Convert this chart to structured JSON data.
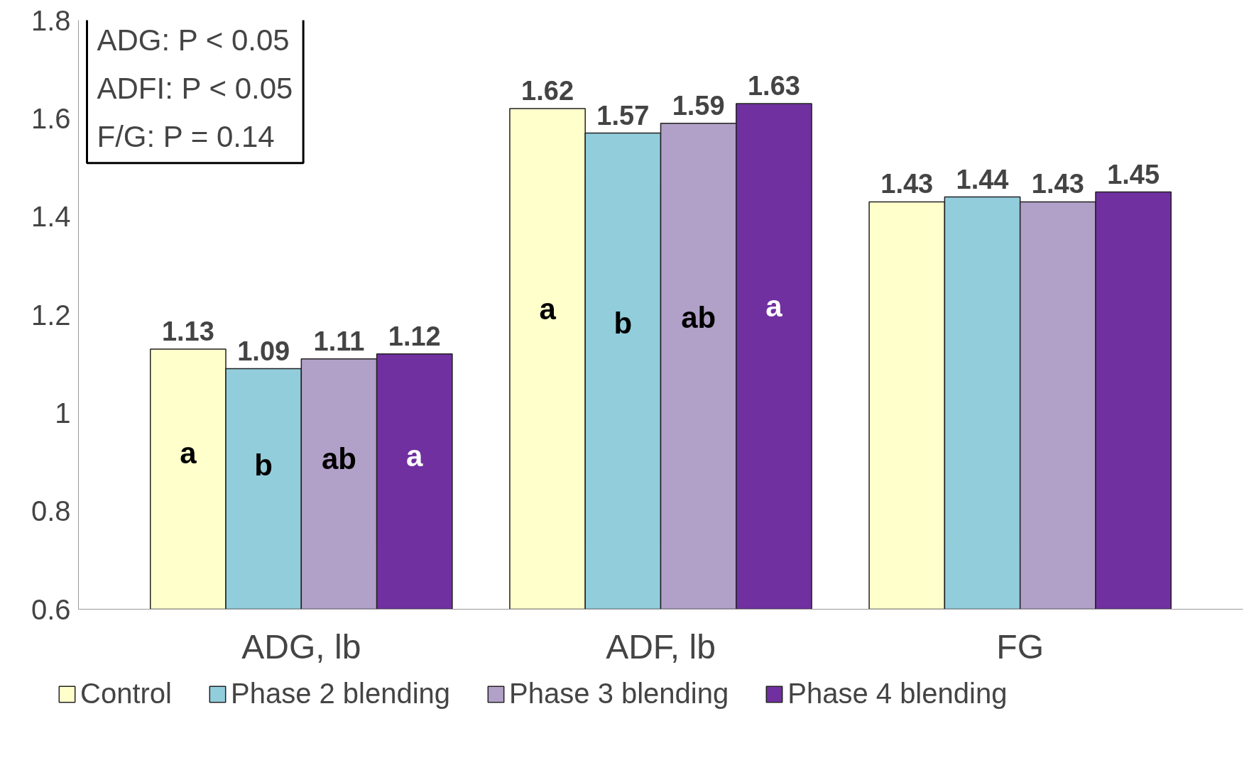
{
  "chart_data": {
    "type": "bar",
    "categories": [
      "ADG, lb",
      "ADF, lb",
      "FG"
    ],
    "series": [
      {
        "name": "Control",
        "color": "#ffffcc",
        "values": [
          1.13,
          1.62,
          1.43
        ]
      },
      {
        "name": "Phase 2 blending",
        "color": "#92cddc",
        "values": [
          1.09,
          1.57,
          1.44
        ]
      },
      {
        "name": "Phase 3 blending",
        "color": "#b1a0c7",
        "values": [
          1.11,
          1.59,
          1.43
        ]
      },
      {
        "name": "Phase 4 blending",
        "color": "#7030a0",
        "values": [
          1.12,
          1.63,
          1.45
        ]
      }
    ],
    "ylim": [
      0.6,
      1.8
    ],
    "yticks": [
      0.6,
      0.8,
      1,
      1.2,
      1.4,
      1.6,
      1.8
    ],
    "data_labels": true,
    "grid": false,
    "legend": "bottom",
    "annotations": [
      "ADG: P < 0.05",
      "ADFI: P < 0.05",
      "F/G: P = 0.14",
      "a",
      "b",
      "ab",
      "a",
      "a",
      "b",
      "ab",
      "a"
    ]
  }
}
